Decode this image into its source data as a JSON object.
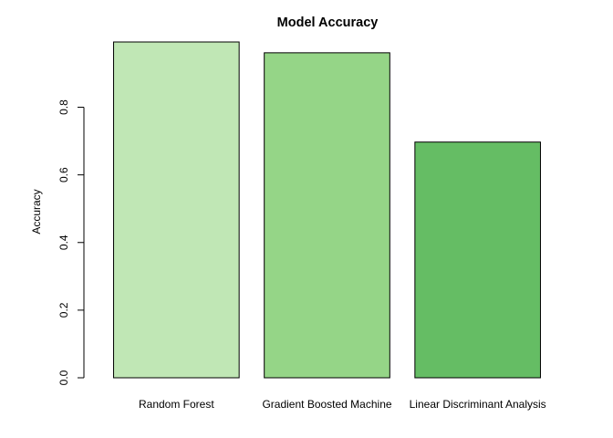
{
  "chart_data": {
    "type": "bar",
    "title": "Model Accuracy",
    "xlabel": "",
    "ylabel": "Accuracy",
    "categories": [
      "Random Forest",
      "Gradient Boosted Machine",
      "Linear Discriminant Analysis"
    ],
    "values": [
      0.993,
      0.961,
      0.697
    ],
    "colors": [
      "#c0e7b5",
      "#95d587",
      "#65bd64"
    ],
    "ylim": [
      0,
      0.993
    ],
    "yticks": [
      0.0,
      0.2,
      0.4,
      0.6,
      0.8
    ],
    "ytick_labels": [
      "0.0",
      "0.2",
      "0.4",
      "0.6",
      "0.8"
    ],
    "grid": false,
    "legend": "none"
  }
}
